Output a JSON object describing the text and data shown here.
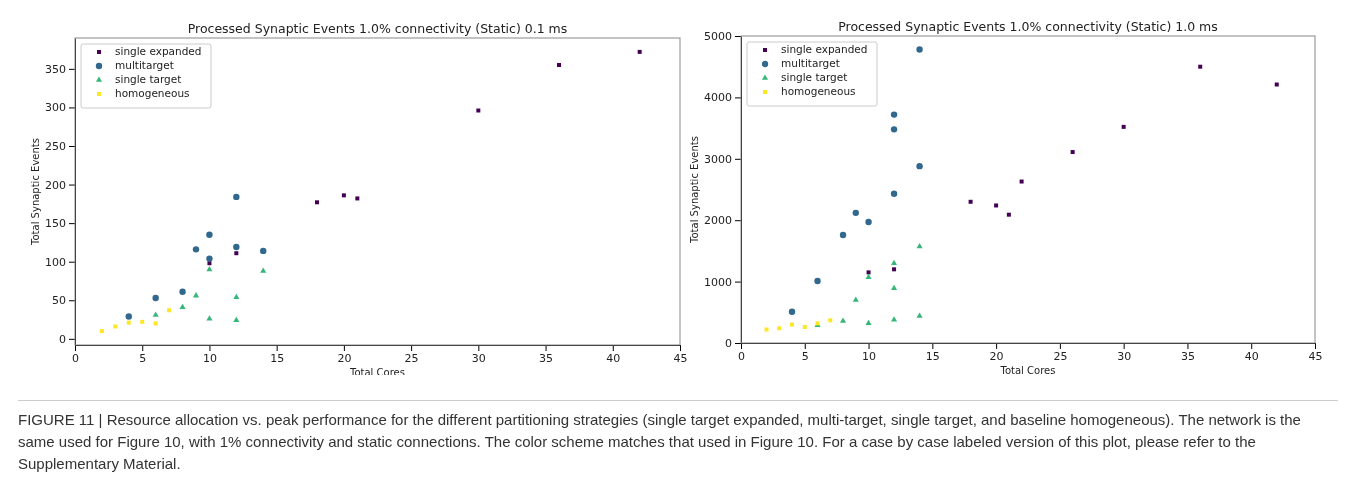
{
  "chart_data": [
    {
      "type": "scatter",
      "title": "Processed Synaptic Events 1.0% connectivity (Static) 0.1 ms",
      "xlabel": "Total Cores",
      "ylabel": "Total Synaptic Events",
      "xlim": [
        0,
        45
      ],
      "xticks": [
        0,
        5,
        10,
        15,
        20,
        25,
        30,
        35,
        40,
        45
      ],
      "ylim": [
        -8,
        390
      ],
      "yticks": [
        0,
        50,
        100,
        150,
        200,
        250,
        300,
        350
      ],
      "grid": false,
      "legend": "top left",
      "annotations": [
        "FIGURE 11 | Resource allocation vs. peak performance for the different partitioning strategies (single target expanded, multi-target, single target, and baseline homogeneous). The network is the same used for Figure 10, with 1% connectivity and static connections. The color scheme matches that used in Figure 10. For a case by case labeled version of this plot, please refer to the Supplementary Material."
      ],
      "series": [
        {
          "name": "single expanded",
          "color": "#440154",
          "marker": "square",
          "x": [
            10,
            12,
            18,
            20,
            21,
            30,
            36,
            42
          ],
          "values": [
            98,
            111,
            177,
            186,
            182,
            296,
            355,
            372
          ]
        },
        {
          "name": "multitarget",
          "color": "#31688e",
          "marker": "circle",
          "x": [
            4,
            6,
            8,
            9,
            10,
            10,
            12,
            12,
            14
          ],
          "values": [
            29,
            53,
            61,
            116,
            135,
            104,
            184,
            119,
            114
          ]
        },
        {
          "name": "single target",
          "color": "#35b779",
          "marker": "triangle",
          "x": [
            6,
            8,
            9,
            10,
            10,
            12,
            12,
            14
          ],
          "values": [
            31,
            41,
            56,
            90,
            26,
            54,
            24,
            88
          ]
        },
        {
          "name": "homogeneous",
          "color": "#fde725",
          "marker": "square",
          "x": [
            2,
            3,
            4,
            5,
            6,
            7
          ],
          "values": [
            10,
            16,
            21,
            22,
            20,
            37
          ]
        }
      ]
    },
    {
      "type": "scatter",
      "title": "Processed Synaptic Events 1.0% connectivity (Static) 1.0 ms",
      "xlabel": "Total Cores",
      "ylabel": "Total Synaptic Events",
      "xlim": [
        0,
        45
      ],
      "xticks": [
        0,
        5,
        10,
        15,
        20,
        25,
        30,
        35,
        40,
        45
      ],
      "ylim": [
        0,
        5000
      ],
      "yticks": [
        0,
        1000,
        2000,
        3000,
        4000,
        5000
      ],
      "grid": false,
      "legend": "top left",
      "series": [
        {
          "name": "single expanded",
          "color": "#440154",
          "marker": "square",
          "x": [
            10,
            12,
            18,
            20,
            21,
            22,
            26,
            30,
            36,
            42
          ],
          "values": [
            1150,
            1200,
            2300,
            2240,
            2090,
            2630,
            3110,
            3520,
            4500,
            4210
          ]
        },
        {
          "name": "multitarget",
          "color": "#31688e",
          "marker": "circle",
          "x": [
            4,
            6,
            8,
            9,
            10,
            12,
            12,
            12,
            14,
            14
          ],
          "values": [
            510,
            1010,
            1760,
            2120,
            1970,
            3720,
            3480,
            2430,
            4780,
            2880
          ]
        },
        {
          "name": "single target",
          "color": "#35b779",
          "marker": "triangle",
          "x": [
            6,
            8,
            9,
            10,
            10,
            12,
            12,
            12,
            14,
            14
          ],
          "values": [
            290,
            360,
            700,
            1070,
            320,
            1300,
            890,
            380,
            1570,
            440
          ]
        },
        {
          "name": "homogeneous",
          "color": "#fde725",
          "marker": "square",
          "x": [
            2,
            3,
            4,
            5,
            6,
            7
          ],
          "values": [
            220,
            240,
            300,
            260,
            320,
            370
          ]
        }
      ]
    }
  ]
}
